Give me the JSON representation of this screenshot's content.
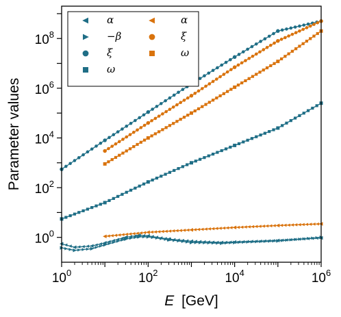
{
  "chart_data": {
    "type": "line",
    "xlabel_var": "E",
    "xlabel_unit": "[GeV]",
    "ylabel": "Parameter values",
    "x_scale": "log",
    "y_scale": "log",
    "xlim": [
      1,
      1000000
    ],
    "ylim": [
      0.1,
      2000000000
    ],
    "x_ticks": [
      {
        "value": 1,
        "base": "10",
        "exp": "0"
      },
      {
        "value": 100,
        "base": "10",
        "exp": "2"
      },
      {
        "value": 10000,
        "base": "10",
        "exp": "4"
      },
      {
        "value": 1000000,
        "base": "10",
        "exp": "6"
      }
    ],
    "y_ticks": [
      {
        "value": 1,
        "base": "10",
        "exp": "0"
      },
      {
        "value": 100,
        "base": "10",
        "exp": "2"
      },
      {
        "value": 10000,
        "base": "10",
        "exp": "4"
      },
      {
        "value": 1000000,
        "base": "10",
        "exp": "6"
      },
      {
        "value": 100000000,
        "base": "10",
        "exp": "8"
      }
    ],
    "legend": {
      "placement": "top-left",
      "columns": [
        [
          {
            "symbol": "tri-left",
            "color": "#1f6e86",
            "label": "α"
          },
          {
            "symbol": "tri-right",
            "color": "#1f6e86",
            "label": "−β"
          },
          {
            "symbol": "circle",
            "color": "#1f6e86",
            "label": "ξ"
          },
          {
            "symbol": "square",
            "color": "#1f6e86",
            "label": "ω"
          }
        ],
        [
          {
            "symbol": "tri-left",
            "color": "#d9730d",
            "label": "α"
          },
          {
            "symbol": "circle",
            "color": "#d9730d",
            "label": "ξ"
          },
          {
            "symbol": "square",
            "color": "#d9730d",
            "label": "ω"
          }
        ]
      ]
    },
    "series": [
      {
        "group": "blue",
        "color": "#1f6e86",
        "symbol": "circle",
        "label": "ξ",
        "x": [
          1,
          10,
          100,
          1000,
          10000,
          100000,
          1000000
        ],
        "y": [
          550,
          8000,
          110000,
          1500000,
          18000000,
          200000000,
          500000000
        ]
      },
      {
        "group": "blue",
        "color": "#1f6e86",
        "symbol": "square",
        "label": "ω",
        "x": [
          1,
          10,
          100,
          1000,
          10000,
          100000,
          1000000
        ],
        "y": [
          5.5,
          25,
          170,
          1000,
          5000,
          25000,
          250000
        ]
      },
      {
        "group": "blue",
        "color": "#1f6e86",
        "symbol": "tri-left",
        "label": "α",
        "x": [
          1,
          2,
          5,
          10,
          30,
          60,
          100,
          300,
          1000,
          5000,
          10000,
          100000,
          1000000
        ],
        "y": [
          0.55,
          0.4,
          0.45,
          0.6,
          1.0,
          1.2,
          1.15,
          0.85,
          0.7,
          0.62,
          0.65,
          0.75,
          0.95
        ]
      },
      {
        "group": "blue",
        "color": "#1f6e86",
        "symbol": "tri-right",
        "label": "−β",
        "x": [
          1,
          2,
          5,
          10,
          30,
          60,
          100,
          300,
          1000,
          5000,
          10000,
          100000,
          1000000
        ],
        "y": [
          0.38,
          0.3,
          0.35,
          0.5,
          0.85,
          1.05,
          1.05,
          0.8,
          0.62,
          0.58,
          0.62,
          0.72,
          1.0
        ]
      },
      {
        "group": "orange",
        "color": "#d9730d",
        "symbol": "circle",
        "label": "ξ",
        "x": [
          10,
          100,
          1000,
          10000,
          100000,
          1000000
        ],
        "y": [
          3000,
          40000,
          500000,
          7000000,
          80000000,
          500000000
        ]
      },
      {
        "group": "orange",
        "color": "#d9730d",
        "symbol": "square",
        "label": "ω",
        "x": [
          10,
          100,
          1000,
          10000,
          100000,
          1000000
        ],
        "y": [
          900,
          10000,
          100000,
          1100000,
          12000000,
          200000000
        ]
      },
      {
        "group": "orange",
        "color": "#d9730d",
        "symbol": "tri-left",
        "label": "α",
        "x": [
          10,
          100,
          1000,
          10000,
          100000,
          1000000
        ],
        "y": [
          1.1,
          1.6,
          2.0,
          2.5,
          3.0,
          3.5
        ]
      }
    ]
  }
}
